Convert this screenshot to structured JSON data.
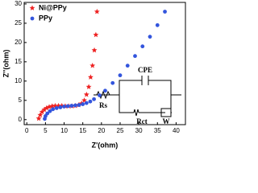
{
  "chart_data": {
    "type": "scatter",
    "x_label": "Z'(ohm)",
    "y_label": "Z''(ohm)",
    "xlim": [
      -0.7,
      42.5
    ],
    "xticks": [
      0,
      5,
      10,
      15,
      20,
      25,
      30,
      35,
      40
    ],
    "ylim": [
      -1.3,
      30.4
    ],
    "yticks": [
      0,
      5,
      10,
      15,
      20,
      25,
      30
    ],
    "legend": "top-left",
    "series": [
      {
        "name": "Ni@PPy",
        "color": "#ee2222",
        "marker": "star",
        "x": [
          3.2,
          3.6,
          4.1,
          4.7,
          5.3,
          6.0,
          6.8,
          7.6,
          8.5,
          9.4,
          10.3,
          11.2,
          12.1,
          13.0,
          13.9,
          14.7,
          15.4,
          16.0,
          16.6,
          17.1,
          17.6,
          18.1,
          18.5,
          18.8
        ],
        "values": [
          0.3,
          1.2,
          2.0,
          2.6,
          3.0,
          3.3,
          3.5,
          3.6,
          3.6,
          3.6,
          3.5,
          3.5,
          3.5,
          3.6,
          3.8,
          4.2,
          5.0,
          6.5,
          8.5,
          11,
          14,
          18,
          22,
          28
        ]
      },
      {
        "name": "PPy",
        "color": "#3355dd",
        "marker": "circle",
        "x": [
          4.8,
          5.0,
          5.5,
          6.2,
          7.0,
          8.0,
          9.0,
          10,
          11,
          12,
          13,
          14,
          15,
          16,
          17,
          18,
          19.5,
          21,
          23,
          25,
          27,
          29,
          31,
          33,
          35,
          37
        ],
        "values": [
          0.2,
          0.9,
          1.6,
          2.2,
          2.7,
          3.0,
          3.2,
          3.4,
          3.5,
          3.6,
          3.7,
          3.8,
          4.0,
          4.3,
          4.7,
          5.3,
          6.3,
          7.5,
          9.5,
          11.5,
          14,
          16.5,
          19,
          21.5,
          24.5,
          28
        ]
      }
    ],
    "annotations": [
      "Rs",
      "CPE",
      "Rct",
      "W"
    ]
  }
}
